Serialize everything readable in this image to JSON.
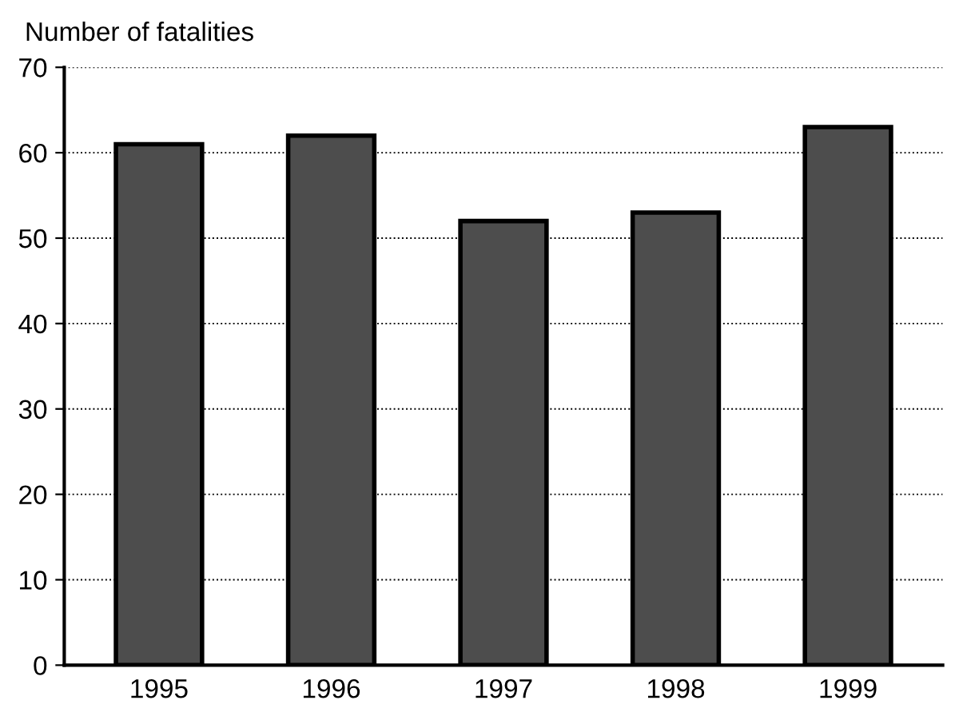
{
  "chart_data": {
    "type": "bar",
    "ylabel": "Number of fatalities",
    "categories": [
      "1995",
      "1996",
      "1997",
      "1998",
      "1999"
    ],
    "values": [
      61,
      62,
      52,
      53,
      63
    ],
    "color": "#4d4d4d",
    "ylim": [
      0,
      70
    ],
    "yticks": [
      0,
      10,
      20,
      30,
      40,
      50,
      60,
      70
    ],
    "grid": "y"
  }
}
